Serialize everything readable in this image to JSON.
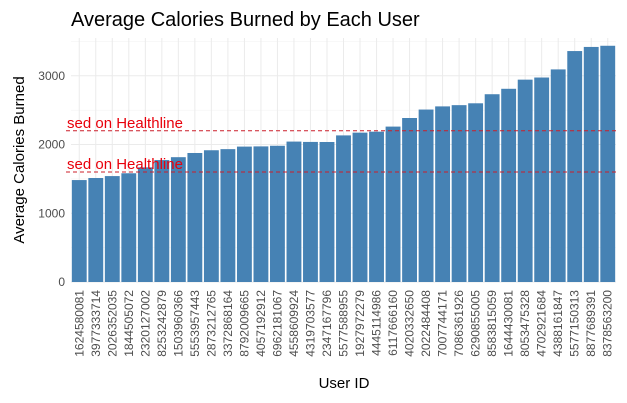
{
  "chart_data": {
    "type": "bar",
    "title": "Average Calories Burned by Each User",
    "xlabel": "User ID",
    "ylabel": "Average Calories Burned",
    "ylim": [
      0,
      3550
    ],
    "yticks": [
      0,
      1000,
      2000,
      3000
    ],
    "grid": true,
    "bar_color": "#4682b4",
    "categories": [
      "1624580081",
      "3977333714",
      "2026352035",
      "1844505072",
      "2320127002",
      "8253242879",
      "1503960366",
      "5553957443",
      "2873212765",
      "3372868164",
      "8792009665",
      "4057192912",
      "6962181067",
      "4558609924",
      "4319703577",
      "2347167796",
      "5577588955",
      "1927972279",
      "4445114986",
      "6117666160",
      "4020332650",
      "2022484408",
      "7007744171",
      "7086361926",
      "6290855005",
      "8583815059",
      "1644430081",
      "8053475328",
      "4702921684",
      "4388161847",
      "5577150313",
      "8877689391",
      "8378563200"
    ],
    "values": [
      1483,
      1513,
      1541,
      1582,
      1668,
      1774,
      1816,
      1877,
      1917,
      1933,
      1970,
      1973,
      1982,
      2043,
      2038,
      2037,
      2133,
      2173,
      2187,
      2261,
      2386,
      2509,
      2555,
      2573,
      2600,
      2732,
      2811,
      2944,
      2975,
      3093,
      3360,
      3420,
      3437
    ],
    "reference_lines": [
      {
        "value": 2200,
        "color": "#cc1f2a",
        "label": "sed on Healthline"
      },
      {
        "value": 1600,
        "color": "#cc1f2a",
        "label": "sed on Healthline"
      }
    ]
  }
}
